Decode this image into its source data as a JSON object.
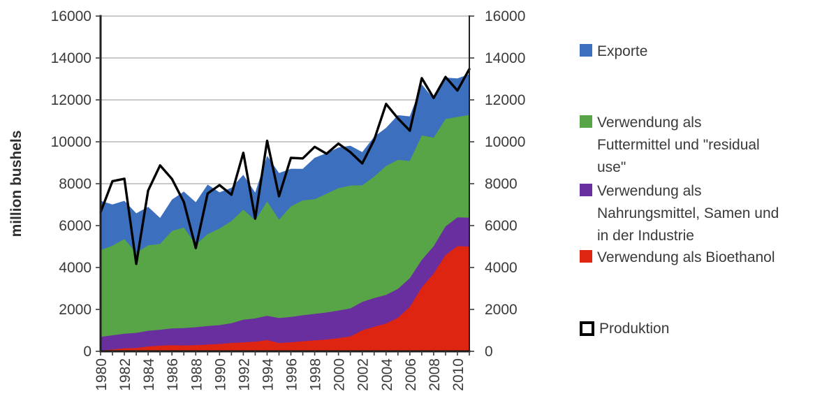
{
  "chart_data": {
    "type": "area",
    "subtype": "stacked-area-with-line-overlay",
    "title": "",
    "ylabel": "million bushels",
    "xlabel": "",
    "ylim": [
      0,
      16000
    ],
    "y_ticks": [
      0,
      2000,
      4000,
      6000,
      8000,
      10000,
      12000,
      14000,
      16000
    ],
    "grid": "horizontal",
    "dual_y_axis": true,
    "x_years": [
      1980,
      1981,
      1982,
      1983,
      1984,
      1985,
      1986,
      1987,
      1988,
      1989,
      1990,
      1991,
      1992,
      1993,
      1994,
      1995,
      1996,
      1997,
      1998,
      1999,
      2000,
      2001,
      2002,
      2003,
      2004,
      2005,
      2006,
      2007,
      2008,
      2009,
      2010,
      2011
    ],
    "x_axis_labeled_years": [
      1980,
      1982,
      1984,
      1986,
      1988,
      1990,
      1992,
      1994,
      1996,
      1998,
      2000,
      2002,
      2004,
      2006,
      2008,
      2010
    ],
    "series": [
      {
        "id": "bioethanol",
        "name": "Verwendung als Bioethanol",
        "color": "#DE2512",
        "values": [
          35,
          85,
          140,
          160,
          230,
          270,
          290,
          280,
          290,
          320,
          350,
          400,
          425,
          460,
          535,
          395,
          430,
          480,
          525,
          565,
          630,
          710,
          1000,
          1170,
          1325,
          1600,
          2120,
          3050,
          3710,
          4590,
          5020,
          5000
        ]
      },
      {
        "id": "nahrungsmittel",
        "name": "Verwendung als Nahrungsmittel, Samen und in der Industrie",
        "color": "#6A2F9E",
        "values": [
          655,
          680,
          700,
          720,
          750,
          760,
          800,
          830,
          860,
          890,
          900,
          940,
          1085,
          1110,
          1160,
          1190,
          1210,
          1240,
          1260,
          1290,
          1315,
          1335,
          1360,
          1370,
          1365,
          1380,
          1370,
          1315,
          1305,
          1370,
          1372,
          1380
        ]
      },
      {
        "id": "futtermittel",
        "name": "Verwendung als Futtermittel und \"residual use\"",
        "color": "#57A546",
        "values": [
          4139,
          4277,
          4521,
          3819,
          4079,
          4095,
          4649,
          4798,
          3941,
          4382,
          4609,
          4878,
          5252,
          4680,
          5460,
          4696,
          5277,
          5482,
          5471,
          5664,
          5842,
          5864,
          5563,
          5795,
          6158,
          6155,
          5598,
          5938,
          5182,
          5125,
          4795,
          4900
        ]
      },
      {
        "id": "exporte",
        "name": "Exporte",
        "color": "#3C6FBE",
        "values": [
          2355,
          1967,
          1821,
          1886,
          1838,
          1241,
          1504,
          1716,
          2026,
          2367,
          1727,
          1584,
          1663,
          1328,
          2177,
          2228,
          1795,
          1504,
          1981,
          1937,
          1941,
          1905,
          1588,
          1900,
          1818,
          2134,
          2125,
          2437,
          1849,
          1980,
          1835,
          1950
        ]
      }
    ],
    "line_series": {
      "id": "produktion",
      "name": "Produktion",
      "color": "#000000",
      "values": [
        6639,
        8119,
        8235,
        4174,
        7672,
        8875,
        8226,
        7131,
        4929,
        7532,
        7934,
        7475,
        9477,
        6336,
        10051,
        7400,
        9233,
        9207,
        9759,
        9431,
        9915,
        9503,
        8967,
        10087,
        11806,
        11112,
        10531,
        13038,
        12092,
        13092,
        12447,
        13470
      ]
    }
  },
  "legend": {
    "position": "right",
    "items": [
      {
        "id": "exporte",
        "swatch": "fill",
        "color": "#3C6FBE",
        "lines": [
          "Exporte"
        ]
      },
      {
        "id": "futtermittel",
        "swatch": "fill",
        "color": "#57A546",
        "lines": [
          "Verwendung als",
          "Futtermittel und \"residual",
          "use\""
        ]
      },
      {
        "id": "nahrungsmittel",
        "swatch": "fill",
        "color": "#6A2F9E",
        "lines": [
          "Verwendung als",
          "Nahrungsmittel, Samen und",
          "in der Industrie"
        ]
      },
      {
        "id": "bioethanol",
        "swatch": "fill",
        "color": "#DE2512",
        "lines": [
          "Verwendung als Bioethanol"
        ]
      },
      {
        "id": "produktion",
        "swatch": "outline",
        "color": "#000000",
        "lines": [
          "Produktion"
        ]
      }
    ]
  },
  "colors": {
    "background": "#ffffff",
    "gridline": "#c9c9c9",
    "axis": "#1f1f1f",
    "text": "#3a3a3a"
  }
}
